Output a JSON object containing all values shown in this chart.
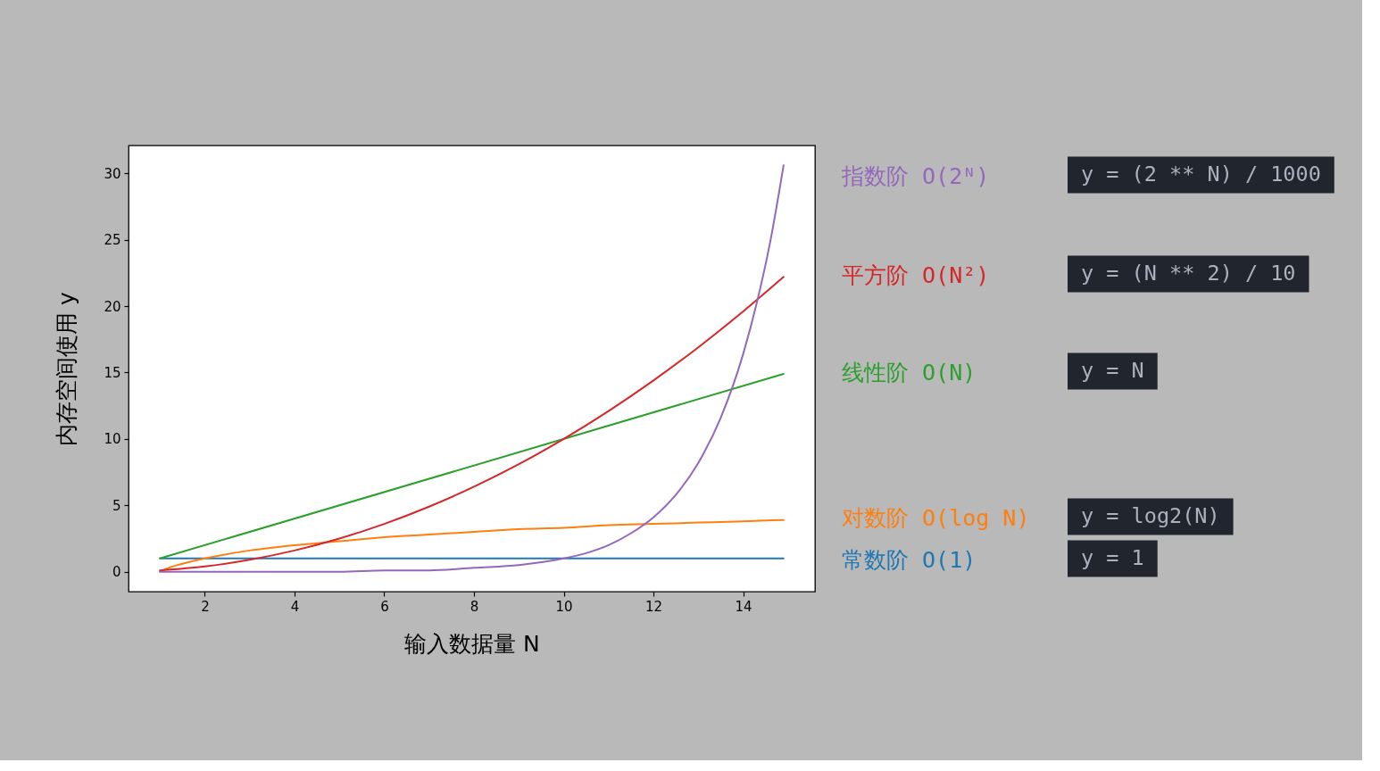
{
  "chart_data": {
    "type": "line",
    "xlabel": "输入数据量 N",
    "ylabel": "内存空间使用 y",
    "xlim": [
      0.3,
      15.6
    ],
    "ylim": [
      -1.5,
      32.1
    ],
    "xticks": [
      2,
      4,
      6,
      8,
      10,
      12,
      14
    ],
    "yticks": [
      0,
      5,
      10,
      15,
      20,
      25,
      30
    ],
    "grid": false,
    "legend": "right",
    "marker": "none",
    "line_style": "solid",
    "series": [
      {
        "name": "指数阶 O(2ᴺ)",
        "color": "#9467bd",
        "x": [
          1,
          2,
          3,
          4,
          5,
          6,
          7,
          8,
          9,
          10,
          10.5,
          11,
          11.5,
          12,
          12.5,
          13,
          13.5,
          14,
          14.3,
          14.6,
          14.9
        ],
        "values": [
          0.0,
          0.0,
          0.0,
          0.0,
          0.0,
          0.1,
          0.1,
          0.3,
          0.5,
          1.0,
          1.4,
          2.0,
          2.9,
          4.1,
          5.8,
          8.2,
          11.6,
          16.4,
          20.2,
          24.8,
          30.6
        ]
      },
      {
        "name": "平方阶 O(N²)",
        "color": "#d62728",
        "x": [
          1,
          2,
          3,
          4,
          5,
          6,
          7,
          8,
          9,
          10,
          11,
          12,
          13,
          14,
          14.9
        ],
        "values": [
          0.1,
          0.4,
          0.9,
          1.6,
          2.5,
          3.6,
          4.9,
          6.4,
          8.1,
          10.0,
          12.1,
          14.4,
          16.9,
          19.6,
          22.2
        ]
      },
      {
        "name": "线性阶 O(N)",
        "color": "#2ca02c",
        "x": [
          1,
          14.9
        ],
        "values": [
          1.0,
          14.9
        ]
      },
      {
        "name": "对数阶 O(log N)",
        "color": "#ff7f0e",
        "x": [
          1,
          1.2,
          1.5,
          2,
          3,
          4,
          5,
          6,
          7,
          8,
          9,
          10,
          11,
          12,
          13,
          14,
          14.9
        ],
        "values": [
          0.0,
          0.3,
          0.6,
          1.0,
          1.6,
          2.0,
          2.3,
          2.6,
          2.8,
          3.0,
          3.2,
          3.3,
          3.5,
          3.6,
          3.7,
          3.8,
          3.9
        ]
      },
      {
        "name": "常数阶 O(1)",
        "color": "#1f77b4",
        "x": [
          1,
          14.9
        ],
        "values": [
          1.0,
          1.0
        ]
      }
    ],
    "annotations": [
      "y = (2 ** N) / 1000",
      "y = (N ** 2) / 10",
      "y = N",
      "y = log2(N)",
      "y = 1"
    ]
  }
}
